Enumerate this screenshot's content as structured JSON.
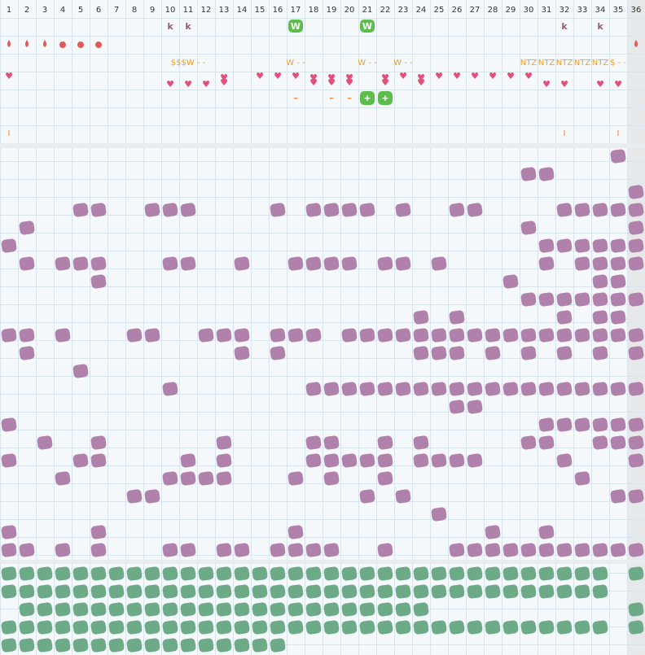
{
  "header": {
    "columns": [
      1,
      2,
      3,
      4,
      5,
      6,
      7,
      8,
      9,
      10,
      11,
      12,
      13,
      14,
      15,
      16,
      17,
      18,
      19,
      20,
      21,
      22,
      23,
      24,
      25,
      26,
      27,
      28,
      29,
      30,
      31,
      32,
      33,
      34,
      35,
      36
    ]
  },
  "top": {
    "badges": [
      "k",
      "k",
      "W",
      "W",
      "k",
      "k"
    ],
    "labels": [
      "$$$W - -",
      "W - -",
      "W - -",
      "W - -",
      "NTZ",
      "NTZ",
      "NTZ",
      "NTZ",
      "NTZ",
      "$ - -"
    ],
    "signs": [
      "–",
      "–",
      "–",
      "+",
      "+"
    ],
    "marks": [
      "I",
      "I",
      "I"
    ]
  }
}
